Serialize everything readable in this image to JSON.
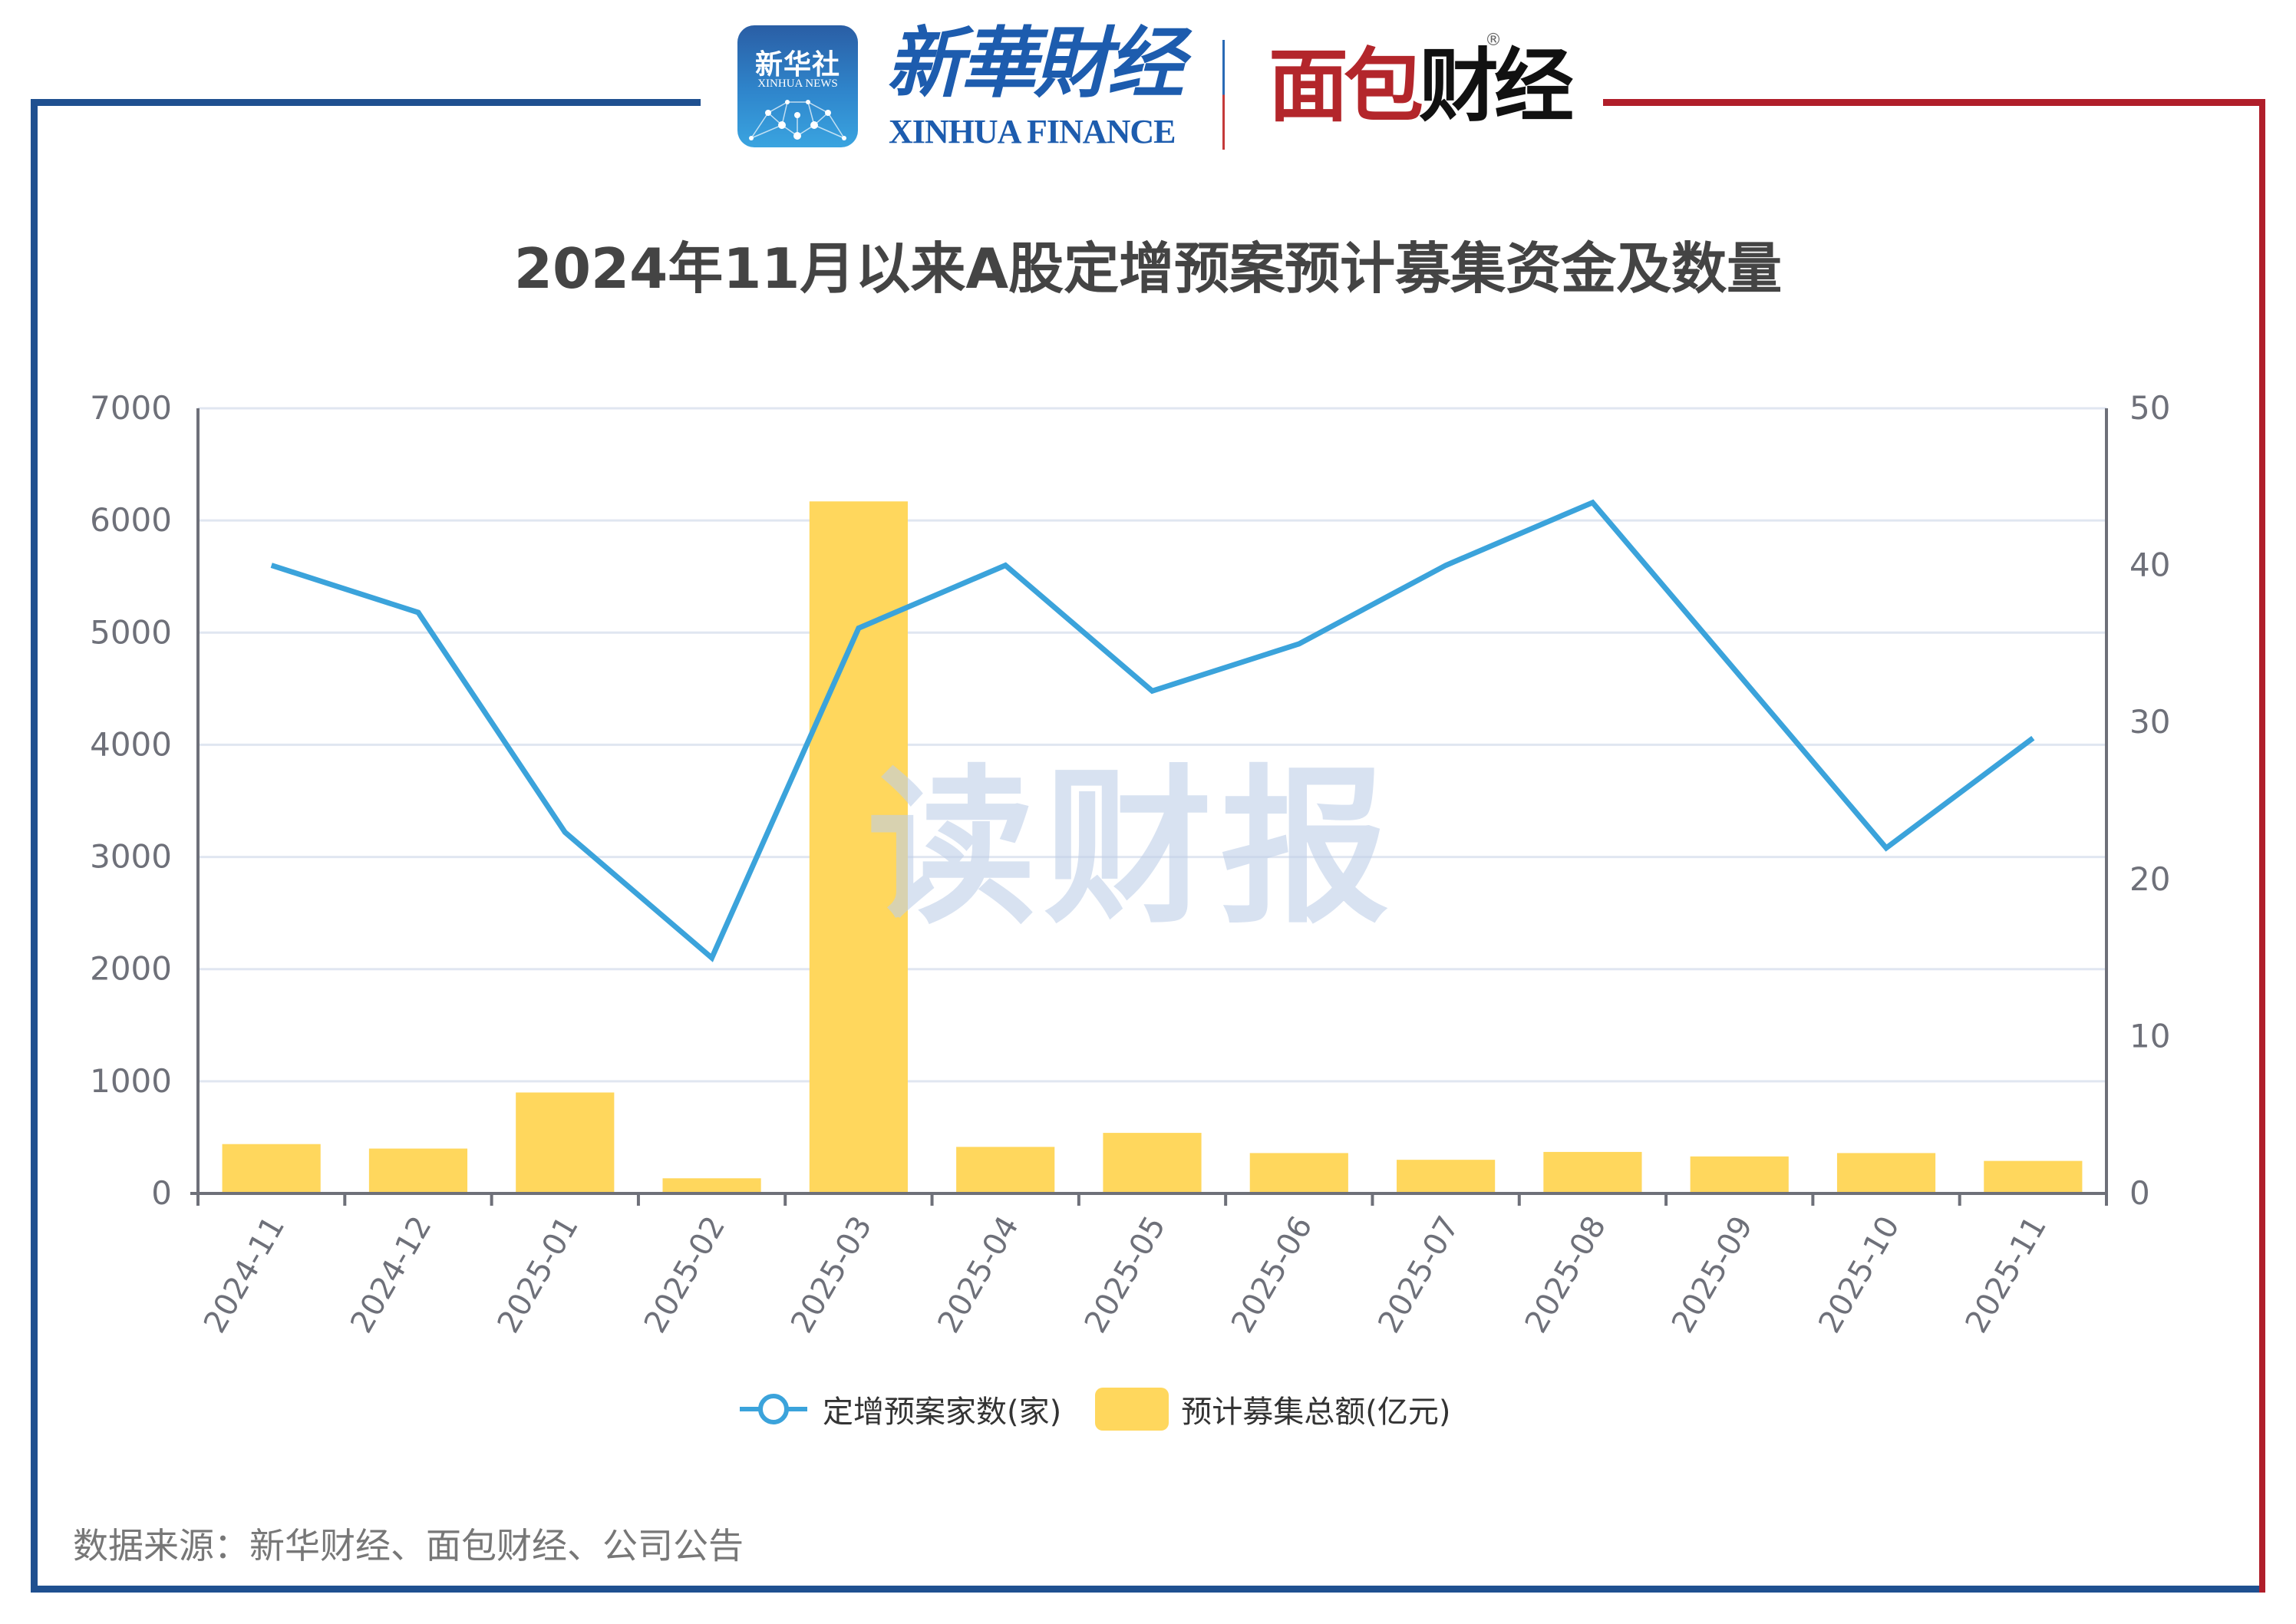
{
  "header": {
    "xinhua_icon_cn": "新华社",
    "xinhua_icon_en": "XINHUA NEWS",
    "xinhua_finance_cn": "新華財经",
    "xinhua_finance_en": "XINHUA FINANCE",
    "mianbao_logo_red": "面包",
    "mianbao_logo_black": "财经",
    "registered_mark": "®"
  },
  "colors": {
    "frame_blue": "#1f5090",
    "frame_red": "#b01e2a",
    "bar": "#ffd75d",
    "line": "#3ba3db",
    "grid": "#e0e6f1",
    "axis": "#6e7079",
    "title": "#444444"
  },
  "watermark": "读财报",
  "source": "数据来源：新华财经、面包财经、公司公告",
  "chart_data": {
    "type": "bar+line",
    "title": "2024年11月以来A股定增预案预计募集资金及数量",
    "categories": [
      "2024-11",
      "2024-12",
      "2025-01",
      "2025-02",
      "2025-03",
      "2025-04",
      "2025-05",
      "2025-06",
      "2025-07",
      "2025-08",
      "2025-09",
      "2025-10",
      "2025-11"
    ],
    "series": [
      {
        "name": "预计募集总额(亿元)",
        "type": "bar",
        "axis": "left",
        "values": [
          440,
          400,
          900,
          135,
          6170,
          415,
          540,
          360,
          300,
          370,
          330,
          360,
          290
        ]
      },
      {
        "name": "定增预案家数(家)",
        "type": "line",
        "axis": "right",
        "values": [
          40,
          37,
          23,
          15,
          36,
          40,
          32,
          35,
          40,
          44,
          33,
          22,
          29
        ]
      }
    ],
    "left_axis": {
      "ylim": [
        0,
        7000
      ],
      "ticks": [
        "0",
        "1000",
        "2000",
        "3000",
        "4000",
        "5000",
        "6000",
        "7000"
      ]
    },
    "right_axis": {
      "ylim": [
        0,
        50
      ],
      "ticks": [
        "0",
        "10",
        "20",
        "30",
        "40",
        "50"
      ]
    },
    "xlabel": "",
    "ylabel": "",
    "grid": true,
    "legend_position": "bottom",
    "legend": [
      "定增预案家数(家)",
      "预计募集总额(亿元)"
    ]
  }
}
